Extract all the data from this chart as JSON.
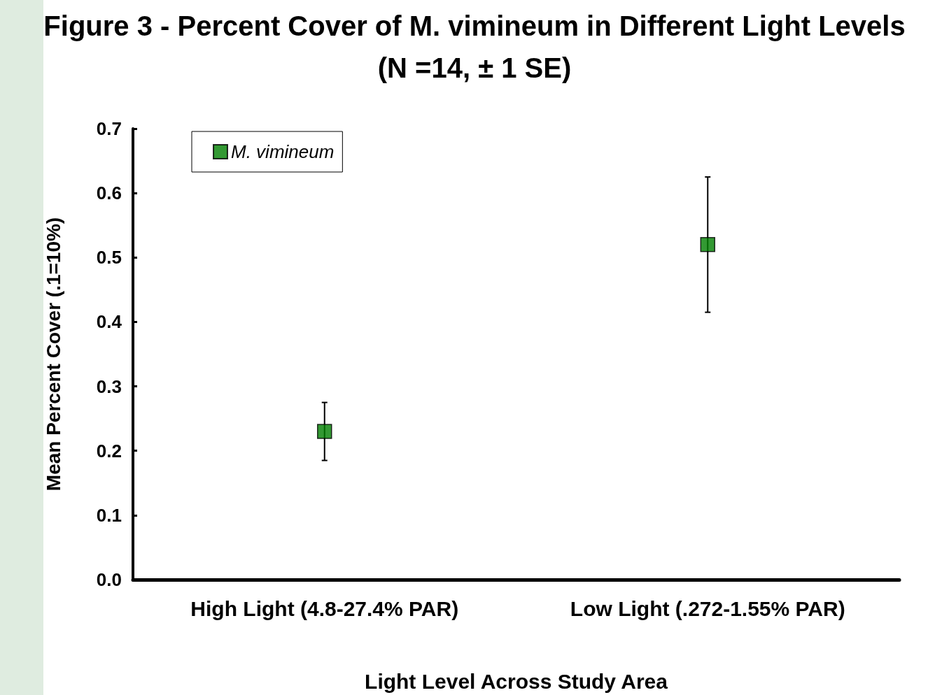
{
  "chart_data": {
    "type": "scatter",
    "title": "Figure 3 - Percent Cover of M. vimineum in Different Light Levels",
    "subtitle": "(N =14, ± 1 SE)",
    "xlabel": "Light Level Across Study Area",
    "ylabel": "Mean Percent Cover (.1=10%)",
    "categories": [
      "High Light (4.8-27.4% PAR)",
      "Low Light (.272-1.55% PAR)"
    ],
    "series": [
      {
        "name": "M. vimineum",
        "color": "#008000",
        "values": [
          0.23,
          0.52
        ],
        "errors": [
          0.045,
          0.105
        ]
      }
    ],
    "ylim": [
      0,
      0.7
    ],
    "yticks": [
      {
        "value": 0,
        "label": "0.0"
      },
      0.1,
      0.2,
      0.3,
      0.4,
      0.5,
      0.6,
      0.7
    ],
    "marker": "square",
    "legend": "top left",
    "grid": false
  }
}
